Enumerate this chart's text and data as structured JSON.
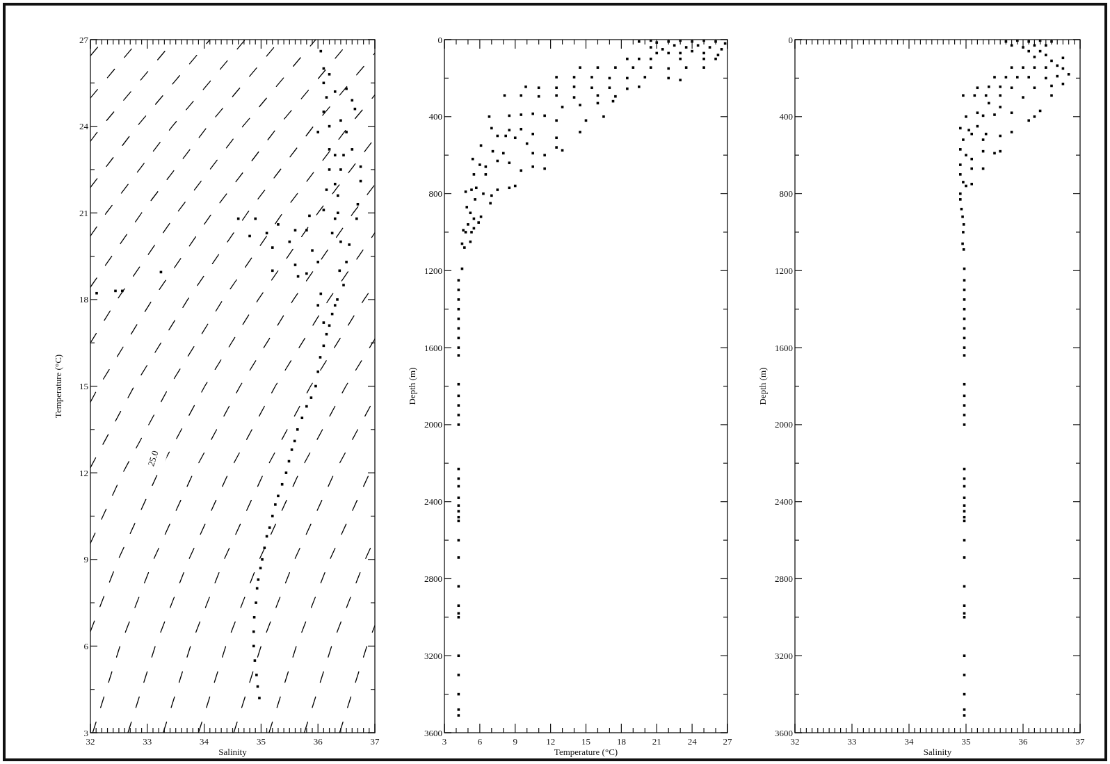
{
  "chart_data": [
    {
      "type": "scatter",
      "xlabel": "Salinity",
      "ylabel": "Temperature (°C)",
      "xlim": [
        32,
        37
      ],
      "ylim": [
        3,
        27
      ],
      "xticks": [
        32,
        {
          "value": 32.1,
          "label": null
        },
        {
          "value": 32.2,
          "label": null
        },
        {
          "value": 32.3,
          "label": null
        },
        {
          "value": 32.4,
          "label": null
        },
        {
          "value": 32.5,
          "label": null
        },
        {
          "value": 32.6,
          "label": null
        },
        {
          "value": 32.7,
          "label": null
        },
        {
          "value": 32.8,
          "label": null
        },
        {
          "value": 32.9,
          "label": null
        },
        33,
        {
          "value": 33.1,
          "label": null
        },
        {
          "value": 33.2,
          "label": null
        },
        {
          "value": 33.3,
          "label": null
        },
        {
          "value": 33.4,
          "label": null
        },
        {
          "value": 33.5,
          "label": null
        },
        {
          "value": 33.6,
          "label": null
        },
        {
          "value": 33.7,
          "label": null
        },
        {
          "value": 33.8,
          "label": null
        },
        {
          "value": 33.9,
          "label": null
        },
        34,
        {
          "value": 34.1,
          "label": null
        },
        {
          "value": 34.2,
          "label": null
        },
        {
          "value": 34.3,
          "label": null
        },
        {
          "value": 34.4,
          "label": null
        },
        {
          "value": 34.5,
          "label": null
        },
        {
          "value": 34.6,
          "label": null
        },
        {
          "value": 34.7,
          "label": null
        },
        {
          "value": 34.8,
          "label": null
        },
        {
          "value": 34.9,
          "label": null
        },
        35,
        {
          "value": 35.1,
          "label": null
        },
        {
          "value": 35.2,
          "label": null
        },
        {
          "value": 35.3,
          "label": null
        },
        {
          "value": 35.4,
          "label": null
        },
        {
          "value": 35.5,
          "label": null
        },
        {
          "value": 35.6,
          "label": null
        },
        {
          "value": 35.7,
          "label": null
        },
        {
          "value": 35.8,
          "label": null
        },
        {
          "value": 35.9,
          "label": null
        },
        36,
        {
          "value": 36.1,
          "label": null
        },
        {
          "value": 36.2,
          "label": null
        },
        {
          "value": 36.3,
          "label": null
        },
        {
          "value": 36.4,
          "label": null
        },
        {
          "value": 36.5,
          "label": null
        },
        {
          "value": 36.6,
          "label": null
        },
        {
          "value": 36.7,
          "label": null
        },
        {
          "value": 36.8,
          "label": null
        },
        {
          "value": 36.9,
          "label": null
        },
        37
      ],
      "yticks": [
        3,
        {
          "value": 4.5,
          "label": null
        },
        6,
        {
          "value": 7.5,
          "label": null
        },
        9,
        {
          "value": 10.5,
          "label": null
        },
        12,
        {
          "value": 13.5,
          "label": null
        },
        15,
        {
          "value": 16.5,
          "label": null
        },
        18,
        {
          "value": 19.5,
          "label": null
        },
        21,
        {
          "value": 22.5,
          "label": null
        },
        24,
        {
          "value": 25.5,
          "label": null
        },
        27
      ],
      "annotations": [
        {
          "text": "25.0",
          "x": 33.1,
          "y": 12.5
        }
      ],
      "series": [
        {
          "marker": "square",
          "color": "#000000",
          "x": [
            34.97,
            34.94,
            34.92,
            34.89,
            34.87,
            34.87,
            34.88,
            34.91,
            34.93,
            34.95,
            34.99,
            35.02,
            35.06,
            35.1,
            35.15,
            35.2,
            35.25,
            35.3,
            35.37,
            35.44,
            35.49,
            35.54,
            35.59,
            35.64,
            35.72,
            35.8,
            35.88,
            35.96,
            36,
            36.04,
            36.1,
            36.15,
            36.2,
            36.25,
            36.3,
            36.34,
            36.38,
            36.4,
            36.35,
            36.3,
            36.3,
            36.2,
            36.15,
            36.1,
            36.05,
            36.2,
            36.1,
            36.3,
            36.5,
            36.6,
            36.65,
            36.1,
            36,
            36.4,
            36.5,
            36.6,
            36.75,
            36.75,
            36.7,
            36.68,
            36.2,
            36.2,
            36.15,
            36.1,
            35.85,
            35.8,
            35.9,
            36,
            35.6,
            35.5,
            35.3,
            35.2,
            34.9,
            35.6,
            35.65,
            35.8,
            36.05,
            36,
            36.1,
            36.5,
            36.55,
            36.45,
            34.8,
            34.6,
            35.2,
            33.24,
            32.56,
            32.44,
            32.11,
            35.1,
            36.25,
            36.3,
            36.35,
            36.4,
            36.45
          ],
          "values": [
            4.2,
            4.6,
            5,
            5.5,
            6,
            6.5,
            7,
            7.5,
            8,
            8.3,
            8.7,
            9,
            9.4,
            9.8,
            10.1,
            10.5,
            10.9,
            11.2,
            11.6,
            12,
            12.4,
            12.8,
            13.1,
            13.5,
            13.9,
            14.3,
            14.6,
            15,
            15.5,
            16,
            16.4,
            16.8,
            17.1,
            17.5,
            17.8,
            18,
            19,
            20,
            21,
            22,
            23,
            24,
            25,
            26,
            26.6,
            25.8,
            25.5,
            25.2,
            25.3,
            24.9,
            24.6,
            24.5,
            23.8,
            24.2,
            23.8,
            23.2,
            22.6,
            22.1,
            21.3,
            20.8,
            23.2,
            22.5,
            21.8,
            21.1,
            20.9,
            20.4,
            19.7,
            19.3,
            20.4,
            20,
            20.6,
            19.8,
            20.8,
            19.2,
            18.8,
            18.9,
            18.2,
            17.8,
            17.2,
            19.3,
            19.9,
            18.5,
            20.2,
            20.8,
            19,
            18.95,
            18.3,
            18.3,
            18.22,
            20.3,
            20.3,
            20.8,
            21.6,
            22.5,
            23
          ]
        },
        {
          "type": "line",
          "line_style": "dashed",
          "color": "#000000",
          "x": [
            32,
            32.24
          ],
          "values": [
            26.44,
            27
          ]
        },
        {
          "type": "line",
          "line_style": "dashed",
          "color": "#000000",
          "x": [
            32,
            32.86
          ],
          "values": [
            24.98,
            27
          ]
        },
        {
          "type": "line",
          "line_style": "dashed",
          "color": "#000000",
          "x": [
            32,
            32.2,
            33.48
          ],
          "values": [
            23.48,
            24,
            27
          ]
        },
        {
          "type": "line",
          "line_style": "dashed",
          "color": "#000000",
          "x": [
            32,
            32.82,
            34.1
          ],
          "values": [
            21.88,
            24,
            27
          ]
        },
        {
          "type": "line",
          "line_style": "dashed",
          "color": "#000000",
          "x": [
            32,
            32.28,
            33.44,
            34.72
          ],
          "values": [
            20.2,
            21,
            24,
            27
          ]
        },
        {
          "type": "line",
          "line_style": "dashed",
          "color": "#000000",
          "x": [
            32,
            32.9,
            34.06,
            35.34
          ],
          "values": [
            18.43,
            21,
            24,
            27
          ]
        },
        {
          "type": "line",
          "line_style": "dashed",
          "color": "#000000",
          "x": [
            32,
            32.47,
            33.52,
            34.68,
            35.96
          ],
          "values": [
            16.5,
            18,
            21,
            24,
            27
          ]
        },
        {
          "type": "line",
          "line_style": "dashed",
          "color": "#000000",
          "x": [
            32,
            32.15,
            33.09,
            34.14,
            35.3,
            36.58
          ],
          "values": [
            14.45,
            15,
            18,
            21,
            24,
            27
          ]
        },
        {
          "type": "line",
          "line_style": "dashed",
          "color": "#000000",
          "x": [
            32,
            32.77,
            33.71,
            34.76,
            35.92,
            37
          ],
          "values": [
            12.18,
            15,
            18,
            21,
            24,
            26.53
          ]
        },
        {
          "type": "line",
          "line_style": "dashed",
          "color": "#000000",
          "x": [
            32,
            32.57,
            33.39,
            34.33,
            35.38,
            36.54,
            37
          ],
          "values": [
            9.56,
            12,
            15,
            18,
            21,
            24,
            25.08
          ]
        },
        {
          "type": "line",
          "line_style": "dashed",
          "color": "#000000",
          "x": [
            32,
            32.49,
            33.19,
            34.01,
            34.95,
            36,
            37
          ],
          "values": [
            6.51,
            9,
            12,
            15,
            18,
            21,
            23.59
          ]
        },
        {
          "type": "line",
          "line_style": "dashed",
          "color": "#000000",
          "x": [
            32.04,
            32.52,
            33.11,
            33.81,
            34.63,
            35.57,
            36.62,
            37
          ],
          "values": [
            3,
            6,
            9,
            12,
            15,
            18,
            21,
            21.98
          ]
        },
        {
          "type": "line",
          "line_style": "dashed",
          "color": "#000000",
          "x": [
            32.66,
            33.14,
            33.73,
            34.43,
            35.25,
            36.19,
            37
          ],
          "values": [
            3,
            6,
            9,
            12,
            15,
            18,
            20.31
          ]
        },
        {
          "type": "line",
          "line_style": "dashed",
          "color": "#000000",
          "x": [
            33.28,
            33.76,
            34.35,
            35.05,
            35.87,
            36.81,
            37
          ],
          "values": [
            3,
            6,
            9,
            12,
            15,
            18,
            18.54
          ]
        },
        {
          "type": "line",
          "line_style": "dashed",
          "color": "#000000",
          "x": [
            33.9,
            34.38,
            34.97,
            35.67,
            36.49,
            37
          ],
          "values": [
            3,
            6,
            9,
            12,
            15,
            16.63
          ]
        },
        {
          "type": "line",
          "line_style": "dashed",
          "color": "#000000",
          "x": [
            34.52,
            35,
            35.59,
            36.29,
            37
          ],
          "values": [
            3,
            6,
            9,
            12,
            14.6
          ]
        },
        {
          "type": "line",
          "line_style": "dashed",
          "color": "#000000",
          "x": [
            35.14,
            35.62,
            36.21,
            36.91,
            37
          ],
          "values": [
            3,
            6,
            9,
            12,
            12.33
          ]
        },
        {
          "type": "line",
          "line_style": "dashed",
          "color": "#000000",
          "x": [
            35.76,
            36.24,
            36.83,
            37
          ],
          "values": [
            3,
            6,
            9,
            9.73
          ]
        },
        {
          "type": "line",
          "line_style": "dashed",
          "color": "#000000",
          "x": [
            36.38,
            36.86,
            37
          ],
          "values": [
            3,
            6,
            6.71
          ]
        }
      ]
    },
    {
      "type": "scatter",
      "xlabel": "Temperature (°C)",
      "ylabel": "Depth (m)",
      "xlim": [
        3,
        27
      ],
      "ylim": [
        3600,
        0
      ],
      "xticks": [
        3,
        {
          "value": 4,
          "label": null
        },
        {
          "value": 5,
          "label": null
        },
        6,
        {
          "value": 7,
          "label": null
        },
        {
          "value": 8,
          "label": null
        },
        9,
        {
          "value": 10,
          "label": null
        },
        {
          "value": 11,
          "label": null
        },
        12,
        {
          "value": 13,
          "label": null
        },
        {
          "value": 14,
          "label": null
        },
        15,
        {
          "value": 16,
          "label": null
        },
        {
          "value": 17,
          "label": null
        },
        18,
        {
          "value": 19,
          "label": null
        },
        {
          "value": 20,
          "label": null
        },
        21,
        {
          "value": 22,
          "label": null
        },
        {
          "value": 23,
          "label": null
        },
        24,
        {
          "value": 25,
          "label": null
        },
        {
          "value": 26,
          "label": null
        },
        27
      ],
      "yticks": [
        0,
        {
          "value": 200,
          "label": null
        },
        400,
        {
          "value": 600,
          "label": null
        },
        800,
        {
          "value": 1000,
          "label": null
        },
        1200,
        {
          "value": 1400,
          "label": null
        },
        1600,
        {
          "value": 1800,
          "label": null
        },
        2000,
        {
          "value": 2200,
          "label": null
        },
        2400,
        {
          "value": 2600,
          "label": null
        },
        2800,
        {
          "value": 3000,
          "label": null
        },
        3200,
        {
          "value": 3400,
          "label": null
        },
        3600
      ],
      "series": [
        {
          "marker": "square",
          "color": "#000000",
          "x": [
            19.5,
            20.5,
            21,
            22,
            23,
            24,
            25,
            26,
            26.8,
            26.5,
            26.2,
            25.5,
            24.5,
            23.5,
            22.5,
            21.5,
            20.5,
            24,
            25,
            23,
            22,
            21,
            19.5,
            18.5,
            20.5,
            23,
            25,
            26,
            14.5,
            16,
            17.5,
            19,
            20.5,
            22,
            23.5,
            25,
            12.5,
            14,
            15.5,
            17,
            18.5,
            20,
            22,
            23,
            9.9,
            11,
            12.5,
            14,
            15.5,
            17,
            18.5,
            19.5,
            8.1,
            9.5,
            11,
            12.5,
            14,
            16,
            17.5,
            13,
            14.5,
            16,
            17.3,
            6.8,
            8.5,
            9.5,
            10.5,
            11.5,
            12.5,
            15,
            16.5,
            7,
            8.5,
            9.5,
            10.5,
            12.5,
            14.5,
            7.5,
            8.2,
            9,
            6.1,
            7.1,
            8,
            10.5,
            11.5,
            12.5,
            13,
            10,
            5.4,
            6,
            6.5,
            7.5,
            8.5,
            9.5,
            10.5,
            11.5,
            5.5,
            6.5,
            4.8,
            5.3,
            5.7,
            6.3,
            7,
            7.5,
            8.5,
            9,
            5.6,
            6.9,
            4.9,
            5.2,
            5.5,
            5,
            5.5,
            4.6,
            4.8,
            5.3,
            5.9,
            6.1,
            4.5,
            4.7,
            5.2,
            4.5,
            4.2,
            4.2,
            4.2,
            4.2,
            4.2,
            4.2,
            4.2,
            4.2,
            4.2,
            4.2,
            4.2,
            4.2,
            4.2,
            4.2,
            4.2,
            4.2,
            4.2,
            4.2,
            4.2,
            4.2,
            4.2,
            4.2,
            4.2,
            4.2,
            4.2,
            4.2,
            4.2,
            4.2,
            4.2,
            4.2,
            4.2,
            4.2,
            4.2
          ],
          "values": [
            10,
            5,
            15,
            10,
            5,
            10,
            5,
            10,
            20,
            50,
            80,
            40,
            30,
            40,
            30,
            50,
            40,
            60,
            70,
            70,
            70,
            70,
            100,
            100,
            100,
            100,
            100,
            100,
            145,
            145,
            145,
            145,
            145,
            150,
            145,
            145,
            195,
            195,
            195,
            200,
            200,
            195,
            200,
            210,
            245,
            250,
            250,
            245,
            250,
            250,
            255,
            245,
            290,
            290,
            295,
            290,
            300,
            290,
            295,
            350,
            340,
            330,
            320,
            400,
            395,
            390,
            385,
            395,
            420,
            420,
            400,
            460,
            470,
            465,
            490,
            510,
            480,
            500,
            500,
            510,
            550,
            580,
            590,
            590,
            600,
            560,
            575,
            540,
            620,
            650,
            660,
            630,
            640,
            680,
            660,
            670,
            700,
            700,
            790,
            780,
            770,
            800,
            810,
            780,
            770,
            760,
            830,
            850,
            870,
            900,
            930,
            960,
            980,
            990,
            1000,
            1000,
            950,
            920,
            1060,
            1080,
            1050,
            1190,
            1250,
            1300,
            1350,
            1400,
            1450,
            1500,
            1550,
            1600,
            1640,
            1790,
            1850,
            1900,
            1950,
            2000,
            2230,
            2280,
            2320,
            2380,
            2420,
            2450,
            2480,
            2500,
            2600,
            2690,
            2840,
            2940,
            2980,
            3000,
            3200,
            3300,
            3400,
            3480,
            3510
          ]
        }
      ]
    },
    {
      "type": "scatter",
      "xlabel": "Salinity",
      "ylabel": "Depth (m)",
      "xlim": [
        32,
        37
      ],
      "ylim": [
        3600,
        0
      ],
      "xticks": [
        32,
        {
          "value": 32.1,
          "label": null
        },
        {
          "value": 32.2,
          "label": null
        },
        {
          "value": 32.3,
          "label": null
        },
        {
          "value": 32.4,
          "label": null
        },
        {
          "value": 32.5,
          "label": null
        },
        {
          "value": 32.6,
          "label": null
        },
        {
          "value": 32.7,
          "label": null
        },
        {
          "value": 32.8,
          "label": null
        },
        {
          "value": 32.9,
          "label": null
        },
        33,
        {
          "value": 33.1,
          "label": null
        },
        {
          "value": 33.2,
          "label": null
        },
        {
          "value": 33.3,
          "label": null
        },
        {
          "value": 33.4,
          "label": null
        },
        {
          "value": 33.5,
          "label": null
        },
        {
          "value": 33.6,
          "label": null
        },
        {
          "value": 33.7,
          "label": null
        },
        {
          "value": 33.8,
          "label": null
        },
        {
          "value": 33.9,
          "label": null
        },
        34,
        {
          "value": 34.1,
          "label": null
        },
        {
          "value": 34.2,
          "label": null
        },
        {
          "value": 34.3,
          "label": null
        },
        {
          "value": 34.4,
          "label": null
        },
        {
          "value": 34.5,
          "label": null
        },
        {
          "value": 34.6,
          "label": null
        },
        {
          "value": 34.7,
          "label": null
        },
        {
          "value": 34.8,
          "label": null
        },
        {
          "value": 34.9,
          "label": null
        },
        35,
        {
          "value": 35.1,
          "label": null
        },
        {
          "value": 35.2,
          "label": null
        },
        {
          "value": 35.3,
          "label": null
        },
        {
          "value": 35.4,
          "label": null
        },
        {
          "value": 35.5,
          "label": null
        },
        {
          "value": 35.6,
          "label": null
        },
        {
          "value": 35.7,
          "label": null
        },
        {
          "value": 35.8,
          "label": null
        },
        {
          "value": 35.9,
          "label": null
        },
        36,
        {
          "value": 36.1,
          "label": null
        },
        {
          "value": 36.2,
          "label": null
        },
        {
          "value": 36.3,
          "label": null
        },
        {
          "value": 36.4,
          "label": null
        },
        {
          "value": 36.5,
          "label": null
        },
        {
          "value": 36.6,
          "label": null
        },
        {
          "value": 36.7,
          "label": null
        },
        {
          "value": 36.8,
          "label": null
        },
        {
          "value": 36.9,
          "label": null
        },
        37
      ],
      "yticks": [
        0,
        {
          "value": 200,
          "label": null
        },
        400,
        {
          "value": 600,
          "label": null
        },
        800,
        {
          "value": 1000,
          "label": null
        },
        1200,
        {
          "value": 1400,
          "label": null
        },
        1600,
        {
          "value": 1800,
          "label": null
        },
        2000,
        {
          "value": 2200,
          "label": null
        },
        2400,
        {
          "value": 2600,
          "label": null
        },
        2800,
        {
          "value": 3000,
          "label": null
        },
        3200,
        {
          "value": 3400,
          "label": null
        },
        3600
      ],
      "series": [
        {
          "marker": "square",
          "color": "#000000",
          "x": [
            35.7,
            35.9,
            36.1,
            36.3,
            36.5,
            36.4,
            36.2,
            36,
            35.8,
            36.3,
            36.1,
            36.4,
            36.2,
            36.5,
            36.7,
            35.8,
            36,
            36.2,
            36.4,
            36.6,
            36.7,
            35.5,
            35.7,
            35.9,
            36.1,
            36.4,
            36.6,
            36.8,
            35.2,
            35.4,
            35.6,
            35.8,
            36.2,
            36.5,
            36.7,
            34.95,
            35.15,
            35.35,
            35.6,
            36,
            36.5,
            35.4,
            35.6,
            35.2,
            35.3,
            35.5,
            36.2,
            36.1,
            36.3,
            35,
            35.8,
            34.9,
            35.05,
            35.2,
            35.1,
            35.35,
            35.6,
            35.8,
            35.3,
            34.95,
            34.9,
            35,
            35.1,
            35.3,
            35.5,
            35.6,
            34.9,
            35.1,
            35.3,
            34.9,
            34.95,
            35,
            34.9,
            35.1,
            34.9,
            34.92,
            34.94,
            34.96,
            34.95,
            34.94,
            34.96,
            34.97,
            34.97,
            34.97,
            34.97,
            34.97,
            34.97,
            34.97,
            34.97,
            34.97,
            34.97,
            34.97,
            34.97,
            34.97,
            34.97,
            34.97,
            34.97,
            34.97,
            34.97,
            34.97,
            34.97,
            34.97,
            34.97,
            34.97,
            34.97,
            34.97,
            34.97,
            34.97,
            34.97,
            34.97,
            34.97,
            34.97,
            34.97,
            34.97,
            34.97
          ],
          "values": [
            10,
            5,
            10,
            5,
            10,
            30,
            30,
            40,
            30,
            60,
            60,
            80,
            90,
            110,
            95,
            145,
            145,
            145,
            145,
            135,
            150,
            195,
            195,
            195,
            195,
            200,
            190,
            180,
            250,
            245,
            245,
            250,
            250,
            240,
            230,
            290,
            290,
            290,
            290,
            300,
            290,
            330,
            350,
            380,
            395,
            390,
            400,
            420,
            370,
            400,
            380,
            460,
            470,
            450,
            490,
            490,
            500,
            480,
            520,
            520,
            570,
            600,
            620,
            580,
            590,
            580,
            650,
            670,
            670,
            700,
            740,
            760,
            800,
            750,
            830,
            880,
            920,
            960,
            1000,
            1060,
            1090,
            1190,
            1250,
            1300,
            1350,
            1400,
            1450,
            1500,
            1550,
            1600,
            1640,
            1790,
            1850,
            1900,
            1950,
            2000,
            2230,
            2280,
            2320,
            2380,
            2420,
            2450,
            2480,
            2500,
            2600,
            2690,
            2840,
            2940,
            2980,
            3000,
            3200,
            3300,
            3400,
            3480,
            3510
          ]
        }
      ]
    }
  ]
}
